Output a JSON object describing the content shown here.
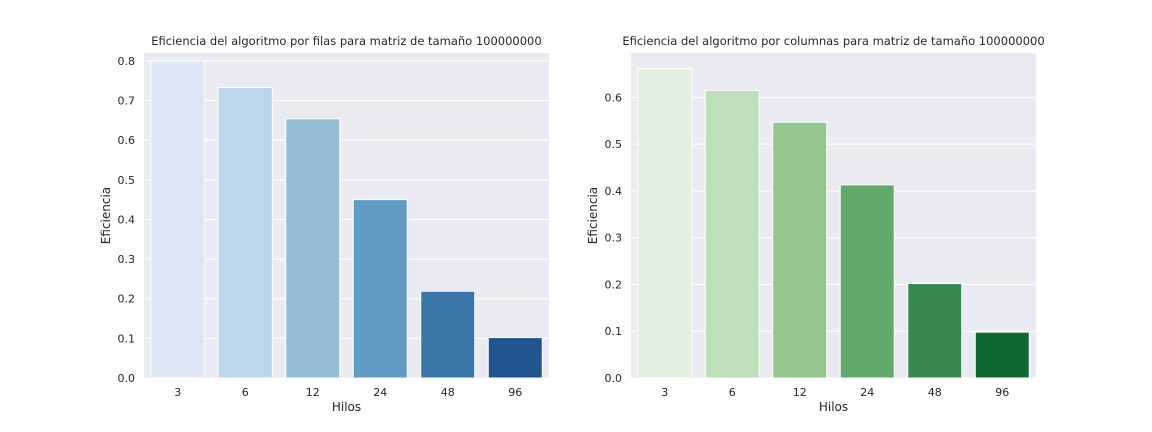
{
  "chart_data": [
    {
      "type": "bar",
      "title": "Eficiencia del algoritmo por filas para matriz de tamaño 100000000",
      "xlabel": "Hilos",
      "ylabel": "Eficiencia",
      "categories": [
        "3",
        "6",
        "12",
        "24",
        "48",
        "96"
      ],
      "values": [
        0.8,
        0.733,
        0.654,
        0.45,
        0.219,
        0.102
      ],
      "yticks": [
        "0.0",
        "0.1",
        "0.2",
        "0.3",
        "0.4",
        "0.5",
        "0.6",
        "0.7",
        "0.8"
      ],
      "ylim": [
        0,
        0.82
      ],
      "grid": true,
      "palette": "Blues",
      "colors": [
        "#dce9f5",
        "#bcd6e9",
        "#94bcd5",
        "#5f9bc2",
        "#3b76ab",
        "#20558f"
      ]
    },
    {
      "type": "bar",
      "title": "Eficiencia del algoritmo por columnas para matriz de tamaño 100000000",
      "xlabel": "Hilos",
      "ylabel": "Eficiencia",
      "categories": [
        "3",
        "6",
        "12",
        "24",
        "48",
        "96"
      ],
      "values": [
        0.662,
        0.615,
        0.547,
        0.413,
        0.202,
        0.098
      ],
      "yticks": [
        "0.0",
        "0.1",
        "0.2",
        "0.3",
        "0.4",
        "0.5",
        "0.6"
      ],
      "ylim": [
        0,
        0.695
      ],
      "grid": true,
      "palette": "Greens",
      "colors": [
        "#e0f0de",
        "#bfdfba",
        "#94c68d",
        "#62a96b",
        "#37884f",
        "#0f6932"
      ]
    }
  ],
  "style": {
    "plot_background": "#eaeaf2",
    "grid_color": "#ffffff",
    "text_color": "#262626"
  }
}
